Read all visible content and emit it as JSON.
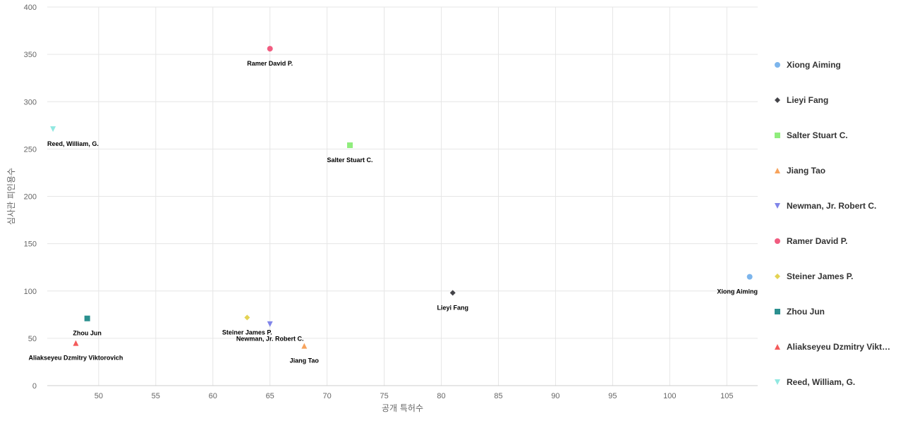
{
  "chart_data": {
    "type": "scatter",
    "title": "",
    "xlabel": "공개 특허수",
    "ylabel": "심사관 피인용수",
    "xlim": [
      45.5,
      107.7
    ],
    "ylim": [
      0,
      400
    ],
    "xticks": [
      50,
      55,
      60,
      65,
      70,
      75,
      80,
      85,
      90,
      95,
      100,
      105
    ],
    "yticks": [
      0,
      50,
      100,
      150,
      200,
      250,
      300,
      350,
      400
    ],
    "grid": true,
    "legend_position": "right",
    "series": [
      {
        "name": "Xiong Aiming",
        "label": "Xiong Aiming",
        "x": 107,
        "y": 115,
        "marker": "circle",
        "color": "#7cb5ec"
      },
      {
        "name": "Lieyi Fang",
        "label": "Lieyi Fang",
        "x": 81,
        "y": 98,
        "marker": "diamond",
        "color": "#434348"
      },
      {
        "name": "Salter Stuart C.",
        "label": "Salter Stuart C.",
        "x": 72,
        "y": 254,
        "marker": "square",
        "color": "#90ed7d"
      },
      {
        "name": "Jiang Tao",
        "label": "Jiang Tao",
        "x": 68,
        "y": 42,
        "marker": "triangle",
        "color": "#f7a35c"
      },
      {
        "name": "Newman, Jr. Robert C.",
        "label": "Newman, Jr. Robert C.",
        "x": 65,
        "y": 65,
        "marker": "triangle-down",
        "color": "#8085e9"
      },
      {
        "name": "Ramer David P.",
        "label": "Ramer David P.",
        "x": 65,
        "y": 356,
        "marker": "circle",
        "color": "#f15c80"
      },
      {
        "name": "Steiner James P.",
        "label": "Steiner James P.",
        "x": 63,
        "y": 72,
        "marker": "diamond",
        "color": "#e4d354"
      },
      {
        "name": "Zhou Jun",
        "label": "Zhou Jun",
        "x": 49,
        "y": 71,
        "marker": "square",
        "color": "#2b908f"
      },
      {
        "name": "Aliakseyeu Dzmitry Viktorovich",
        "legend_text": "Aliakseyeu Dzmitry Vikt…",
        "label": "Aliakseyeu Dzmitry Viktorovich",
        "x": 48,
        "y": 45,
        "marker": "triangle",
        "color": "#f45b5b"
      },
      {
        "name": "Reed, William, G.",
        "label": "Reed, William, G.",
        "x": 46,
        "y": 271,
        "marker": "triangle-down",
        "color": "#91e8e1"
      }
    ]
  }
}
